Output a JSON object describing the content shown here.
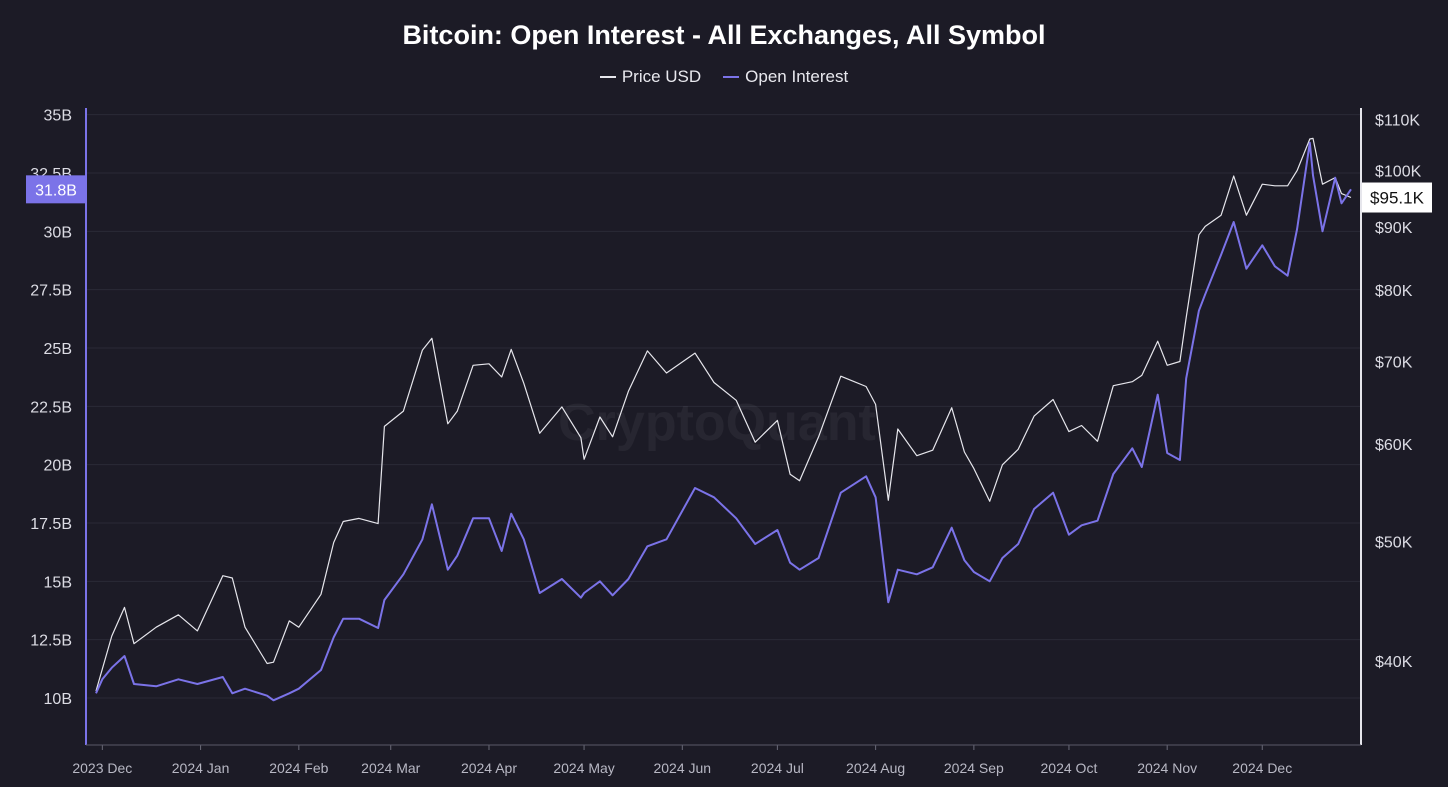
{
  "title": "Bitcoin: Open Interest - All Exchanges, All Symbol",
  "legend": [
    {
      "label": "Price USD",
      "color": "#e6e6ec"
    },
    {
      "label": "Open Interest",
      "color": "#7b73e8"
    }
  ],
  "watermark": "CryptoQuant",
  "colors": {
    "background": "#1c1b26",
    "grid": "#2a2a36",
    "price": "#e6e6ec",
    "open_interest": "#7b73e8",
    "oi_badge": "#7b73e8",
    "price_badge": "#ffffff"
  },
  "chart_data": {
    "type": "line",
    "title": "Bitcoin: Open Interest - All Exchanges, All Symbol",
    "x_tick_labels": [
      "2023 Dec",
      "2024 Jan",
      "2024 Feb",
      "2024 Mar",
      "2024 Apr",
      "2024 May",
      "2024 Jun",
      "2024 Jul",
      "2024 Aug",
      "2024 Sep",
      "2024 Oct",
      "2024 Nov",
      "2024 Dec"
    ],
    "x_tick_dates": [
      "2023-12-01",
      "2024-01-01",
      "2024-02-01",
      "2024-03-01",
      "2024-04-01",
      "2024-05-01",
      "2024-06-01",
      "2024-07-01",
      "2024-08-01",
      "2024-09-01",
      "2024-10-01",
      "2024-11-01",
      "2024-12-01"
    ],
    "x_range": [
      "2023-11-29",
      "2024-12-29"
    ],
    "left_axis": {
      "series": "Open Interest",
      "ticks": [
        "10B",
        "12.5B",
        "15B",
        "17.5B",
        "20B",
        "22.5B",
        "25B",
        "27.5B",
        "30B",
        "32.5B",
        "35B"
      ],
      "tick_values": [
        10,
        12.5,
        15,
        17.5,
        20,
        22.5,
        25,
        27.5,
        30,
        32.5,
        35
      ],
      "range_billions": [
        8.2,
        35.2
      ],
      "current_label": "31.8B",
      "current_value": 31.8
    },
    "right_axis": {
      "series": "Price USD",
      "scale": "log",
      "ticks": [
        "$40K",
        "$50K",
        "$60K",
        "$70K",
        "$80K",
        "$90K",
        "$100K",
        "$110K"
      ],
      "tick_values": [
        40000,
        50000,
        60000,
        70000,
        80000,
        90000,
        100000,
        110000
      ],
      "range_usd": [
        34500,
        112000
      ],
      "current_label": "$95.1K",
      "current_value": 95100
    },
    "grid": true,
    "legend_position": "top-center",
    "series": [
      {
        "name": "Price USD",
        "axis": "right",
        "points": [
          [
            "2023-11-29",
            37800
          ],
          [
            "2023-12-04",
            41900
          ],
          [
            "2023-12-08",
            44200
          ],
          [
            "2023-12-11",
            41300
          ],
          [
            "2023-12-18",
            42600
          ],
          [
            "2023-12-25",
            43600
          ],
          [
            "2023-12-31",
            42300
          ],
          [
            "2024-01-08",
            46900
          ],
          [
            "2024-01-11",
            46700
          ],
          [
            "2024-01-15",
            42600
          ],
          [
            "2024-01-22",
            39800
          ],
          [
            "2024-01-24",
            39900
          ],
          [
            "2024-01-29",
            43100
          ],
          [
            "2024-02-01",
            42600
          ],
          [
            "2024-02-08",
            45300
          ],
          [
            "2024-02-12",
            49900
          ],
          [
            "2024-02-15",
            51900
          ],
          [
            "2024-02-20",
            52200
          ],
          [
            "2024-02-26",
            51700
          ],
          [
            "2024-02-28",
            62000
          ],
          [
            "2024-03-05",
            63800
          ],
          [
            "2024-03-11",
            71500
          ],
          [
            "2024-03-14",
            73100
          ],
          [
            "2024-03-19",
            62300
          ],
          [
            "2024-03-22",
            63800
          ],
          [
            "2024-03-27",
            69500
          ],
          [
            "2024-04-01",
            69700
          ],
          [
            "2024-04-05",
            68000
          ],
          [
            "2024-04-08",
            71600
          ],
          [
            "2024-04-12",
            67200
          ],
          [
            "2024-04-17",
            61200
          ],
          [
            "2024-04-24",
            64300
          ],
          [
            "2024-04-30",
            60700
          ],
          [
            "2024-05-01",
            58300
          ],
          [
            "2024-05-06",
            63100
          ],
          [
            "2024-05-10",
            60800
          ],
          [
            "2024-05-15",
            66200
          ],
          [
            "2024-05-21",
            71400
          ],
          [
            "2024-05-27",
            68500
          ],
          [
            "2024-06-05",
            71100
          ],
          [
            "2024-06-11",
            67300
          ],
          [
            "2024-06-18",
            65100
          ],
          [
            "2024-06-24",
            60200
          ],
          [
            "2024-07-01",
            62700
          ],
          [
            "2024-07-05",
            56700
          ],
          [
            "2024-07-08",
            56000
          ],
          [
            "2024-07-14",
            60800
          ],
          [
            "2024-07-21",
            68100
          ],
          [
            "2024-07-29",
            66800
          ],
          [
            "2024-08-01",
            64600
          ],
          [
            "2024-08-05",
            54000
          ],
          [
            "2024-08-08",
            61700
          ],
          [
            "2024-08-14",
            58700
          ],
          [
            "2024-08-19",
            59300
          ],
          [
            "2024-08-25",
            64200
          ],
          [
            "2024-08-29",
            59100
          ],
          [
            "2024-09-01",
            57300
          ],
          [
            "2024-09-06",
            53900
          ],
          [
            "2024-09-10",
            57700
          ],
          [
            "2024-09-15",
            59400
          ],
          [
            "2024-09-20",
            63200
          ],
          [
            "2024-09-26",
            65200
          ],
          [
            "2024-10-01",
            61400
          ],
          [
            "2024-10-05",
            62100
          ],
          [
            "2024-10-10",
            60300
          ],
          [
            "2024-10-15",
            66900
          ],
          [
            "2024-10-21",
            67400
          ],
          [
            "2024-10-24",
            68200
          ],
          [
            "2024-10-29",
            72700
          ],
          [
            "2024-11-01",
            69500
          ],
          [
            "2024-11-05",
            70000
          ],
          [
            "2024-11-07",
            76000
          ],
          [
            "2024-11-11",
            88700
          ],
          [
            "2024-11-13",
            90100
          ],
          [
            "2024-11-18",
            92000
          ],
          [
            "2024-11-22",
            99000
          ],
          [
            "2024-11-26",
            92000
          ],
          [
            "2024-12-01",
            97500
          ],
          [
            "2024-12-05",
            97200
          ],
          [
            "2024-12-09",
            97200
          ],
          [
            "2024-12-12",
            100000
          ],
          [
            "2024-12-16",
            106100
          ],
          [
            "2024-12-17",
            106200
          ],
          [
            "2024-12-20",
            97500
          ],
          [
            "2024-12-24",
            98700
          ],
          [
            "2024-12-26",
            95800
          ],
          [
            "2024-12-29",
            95100
          ]
        ]
      },
      {
        "name": "Open Interest",
        "axis": "left",
        "points": [
          [
            "2023-11-29",
            10.2
          ],
          [
            "2023-12-01",
            10.8
          ],
          [
            "2023-12-04",
            11.3
          ],
          [
            "2023-12-08",
            11.8
          ],
          [
            "2023-12-11",
            10.6
          ],
          [
            "2023-12-18",
            10.5
          ],
          [
            "2023-12-25",
            10.8
          ],
          [
            "2023-12-31",
            10.6
          ],
          [
            "2024-01-08",
            10.9
          ],
          [
            "2024-01-11",
            10.2
          ],
          [
            "2024-01-15",
            10.4
          ],
          [
            "2024-01-22",
            10.1
          ],
          [
            "2024-01-24",
            9.9
          ],
          [
            "2024-01-29",
            10.2
          ],
          [
            "2024-02-01",
            10.4
          ],
          [
            "2024-02-08",
            11.2
          ],
          [
            "2024-02-12",
            12.6
          ],
          [
            "2024-02-15",
            13.4
          ],
          [
            "2024-02-20",
            13.4
          ],
          [
            "2024-02-26",
            13.0
          ],
          [
            "2024-02-28",
            14.2
          ],
          [
            "2024-03-05",
            15.3
          ],
          [
            "2024-03-11",
            16.8
          ],
          [
            "2024-03-14",
            18.3
          ],
          [
            "2024-03-19",
            15.5
          ],
          [
            "2024-03-22",
            16.1
          ],
          [
            "2024-03-27",
            17.7
          ],
          [
            "2024-04-01",
            17.7
          ],
          [
            "2024-04-05",
            16.3
          ],
          [
            "2024-04-08",
            17.9
          ],
          [
            "2024-04-12",
            16.8
          ],
          [
            "2024-04-17",
            14.5
          ],
          [
            "2024-04-24",
            15.1
          ],
          [
            "2024-04-30",
            14.3
          ],
          [
            "2024-05-01",
            14.5
          ],
          [
            "2024-05-06",
            15.0
          ],
          [
            "2024-05-10",
            14.4
          ],
          [
            "2024-05-15",
            15.1
          ],
          [
            "2024-05-21",
            16.5
          ],
          [
            "2024-05-27",
            16.8
          ],
          [
            "2024-06-05",
            19.0
          ],
          [
            "2024-06-11",
            18.6
          ],
          [
            "2024-06-18",
            17.7
          ],
          [
            "2024-06-24",
            16.6
          ],
          [
            "2024-07-01",
            17.2
          ],
          [
            "2024-07-05",
            15.8
          ],
          [
            "2024-07-08",
            15.5
          ],
          [
            "2024-07-14",
            16.0
          ],
          [
            "2024-07-21",
            18.8
          ],
          [
            "2024-07-29",
            19.5
          ],
          [
            "2024-08-01",
            18.6
          ],
          [
            "2024-08-05",
            14.1
          ],
          [
            "2024-08-08",
            15.5
          ],
          [
            "2024-08-14",
            15.3
          ],
          [
            "2024-08-19",
            15.6
          ],
          [
            "2024-08-25",
            17.3
          ],
          [
            "2024-08-29",
            15.9
          ],
          [
            "2024-09-01",
            15.4
          ],
          [
            "2024-09-06",
            15.0
          ],
          [
            "2024-09-10",
            16.0
          ],
          [
            "2024-09-15",
            16.6
          ],
          [
            "2024-09-20",
            18.1
          ],
          [
            "2024-09-26",
            18.8
          ],
          [
            "2024-10-01",
            17.0
          ],
          [
            "2024-10-05",
            17.4
          ],
          [
            "2024-10-10",
            17.6
          ],
          [
            "2024-10-15",
            19.6
          ],
          [
            "2024-10-21",
            20.7
          ],
          [
            "2024-10-24",
            19.9
          ],
          [
            "2024-10-29",
            23.0
          ],
          [
            "2024-11-01",
            20.5
          ],
          [
            "2024-11-05",
            20.2
          ],
          [
            "2024-11-07",
            23.7
          ],
          [
            "2024-11-11",
            26.6
          ],
          [
            "2024-11-13",
            27.3
          ],
          [
            "2024-11-18",
            29.0
          ],
          [
            "2024-11-22",
            30.4
          ],
          [
            "2024-11-26",
            28.4
          ],
          [
            "2024-12-01",
            29.4
          ],
          [
            "2024-12-05",
            28.5
          ],
          [
            "2024-12-09",
            28.1
          ],
          [
            "2024-12-12",
            30.1
          ],
          [
            "2024-12-16",
            33.8
          ],
          [
            "2024-12-17",
            32.4
          ],
          [
            "2024-12-20",
            30.0
          ],
          [
            "2024-12-24",
            32.3
          ],
          [
            "2024-12-26",
            31.2
          ],
          [
            "2024-12-29",
            31.8
          ]
        ]
      }
    ]
  }
}
